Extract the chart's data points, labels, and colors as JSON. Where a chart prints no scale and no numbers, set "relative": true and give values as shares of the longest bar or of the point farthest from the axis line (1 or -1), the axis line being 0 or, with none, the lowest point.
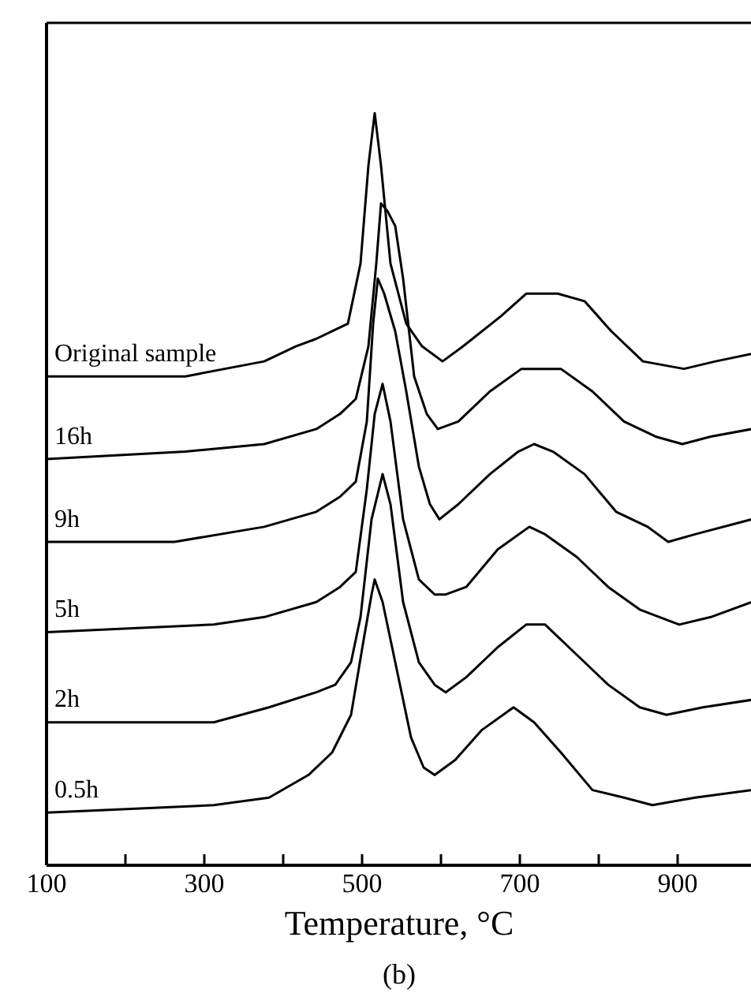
{
  "chart_data": {
    "type": "line",
    "relative": true,
    "title": "(b)",
    "xlabel": "Temperature, °C",
    "xlim": [
      100,
      994
    ],
    "xticks": [
      100,
      {
        "value": 200,
        "label": null
      },
      300,
      {
        "value": 400,
        "label": null
      },
      500,
      {
        "value": 600,
        "label": null
      },
      700,
      {
        "value": 800,
        "label": null
      },
      900
    ],
    "grid": false,
    "marker": "none",
    "line_style": "solid",
    "series": [
      {
        "name": "Original sample",
        "color": "#000000",
        "x": [
          100,
          276,
          376,
          416,
          442,
          462,
          482,
          498,
          508,
          516,
          524,
          536,
          556,
          576,
          602,
          628,
          676,
          708,
          748,
          782,
          816,
          856,
          908,
          948,
          994
        ],
        "values": [
          0.65,
          0.65,
          0.67,
          0.69,
          0.7,
          0.71,
          0.72,
          0.8,
          0.93,
          1.0,
          0.93,
          0.8,
          0.72,
          0.69,
          0.67,
          0.69,
          0.73,
          0.76,
          0.76,
          0.75,
          0.71,
          0.67,
          0.66,
          0.67,
          0.68
        ]
      },
      {
        "name": "16h",
        "color": "#000000",
        "x": [
          100,
          276,
          376,
          442,
          472,
          492,
          508,
          518,
          524,
          532,
          542,
          552,
          566,
          582,
          596,
          622,
          662,
          702,
          728,
          752,
          792,
          832,
          872,
          906,
          942,
          994
        ],
        "values": [
          0.54,
          0.55,
          0.56,
          0.58,
          0.6,
          0.62,
          0.69,
          0.8,
          0.88,
          0.87,
          0.85,
          0.78,
          0.65,
          0.6,
          0.58,
          0.59,
          0.63,
          0.66,
          0.66,
          0.66,
          0.63,
          0.59,
          0.57,
          0.56,
          0.57,
          0.58
        ]
      },
      {
        "name": "9h",
        "color": "#000000",
        "x": [
          100,
          262,
          376,
          442,
          472,
          492,
          506,
          514,
          520,
          528,
          542,
          556,
          572,
          586,
          598,
          622,
          662,
          698,
          718,
          742,
          782,
          822,
          862,
          888,
          922,
          994
        ],
        "values": [
          0.43,
          0.43,
          0.45,
          0.47,
          0.49,
          0.51,
          0.59,
          0.72,
          0.78,
          0.76,
          0.71,
          0.63,
          0.53,
          0.48,
          0.46,
          0.48,
          0.52,
          0.55,
          0.56,
          0.55,
          0.52,
          0.47,
          0.45,
          0.43,
          0.44,
          0.46
        ]
      },
      {
        "name": "5h",
        "color": "#000000",
        "x": [
          100,
          312,
          376,
          442,
          472,
          492,
          506,
          516,
          526,
          536,
          552,
          572,
          592,
          606,
          632,
          672,
          712,
          732,
          772,
          812,
          852,
          902,
          942,
          994
        ],
        "values": [
          0.31,
          0.32,
          0.33,
          0.35,
          0.37,
          0.39,
          0.5,
          0.6,
          0.64,
          0.59,
          0.46,
          0.38,
          0.36,
          0.36,
          0.37,
          0.42,
          0.45,
          0.44,
          0.41,
          0.37,
          0.34,
          0.32,
          0.33,
          0.35
        ]
      },
      {
        "name": "2h",
        "color": "#000000",
        "x": [
          100,
          312,
          382,
          442,
          466,
          486,
          498,
          512,
          526,
          536,
          552,
          572,
          592,
          606,
          632,
          672,
          708,
          732,
          772,
          812,
          852,
          886,
          932,
          994
        ],
        "values": [
          0.19,
          0.19,
          0.21,
          0.23,
          0.24,
          0.27,
          0.33,
          0.46,
          0.52,
          0.48,
          0.35,
          0.27,
          0.24,
          0.23,
          0.25,
          0.29,
          0.32,
          0.32,
          0.28,
          0.24,
          0.21,
          0.2,
          0.21,
          0.22
        ]
      },
      {
        "name": "0.5h",
        "color": "#000000",
        "x": [
          100,
          312,
          382,
          432,
          462,
          486,
          502,
          512,
          516,
          526,
          542,
          562,
          578,
          592,
          618,
          652,
          692,
          718,
          752,
          792,
          832,
          868,
          922,
          994
        ],
        "values": [
          0.07,
          0.08,
          0.09,
          0.12,
          0.15,
          0.2,
          0.3,
          0.36,
          0.38,
          0.35,
          0.27,
          0.17,
          0.13,
          0.12,
          0.14,
          0.18,
          0.21,
          0.19,
          0.15,
          0.1,
          0.09,
          0.08,
          0.09,
          0.1
        ]
      }
    ]
  }
}
